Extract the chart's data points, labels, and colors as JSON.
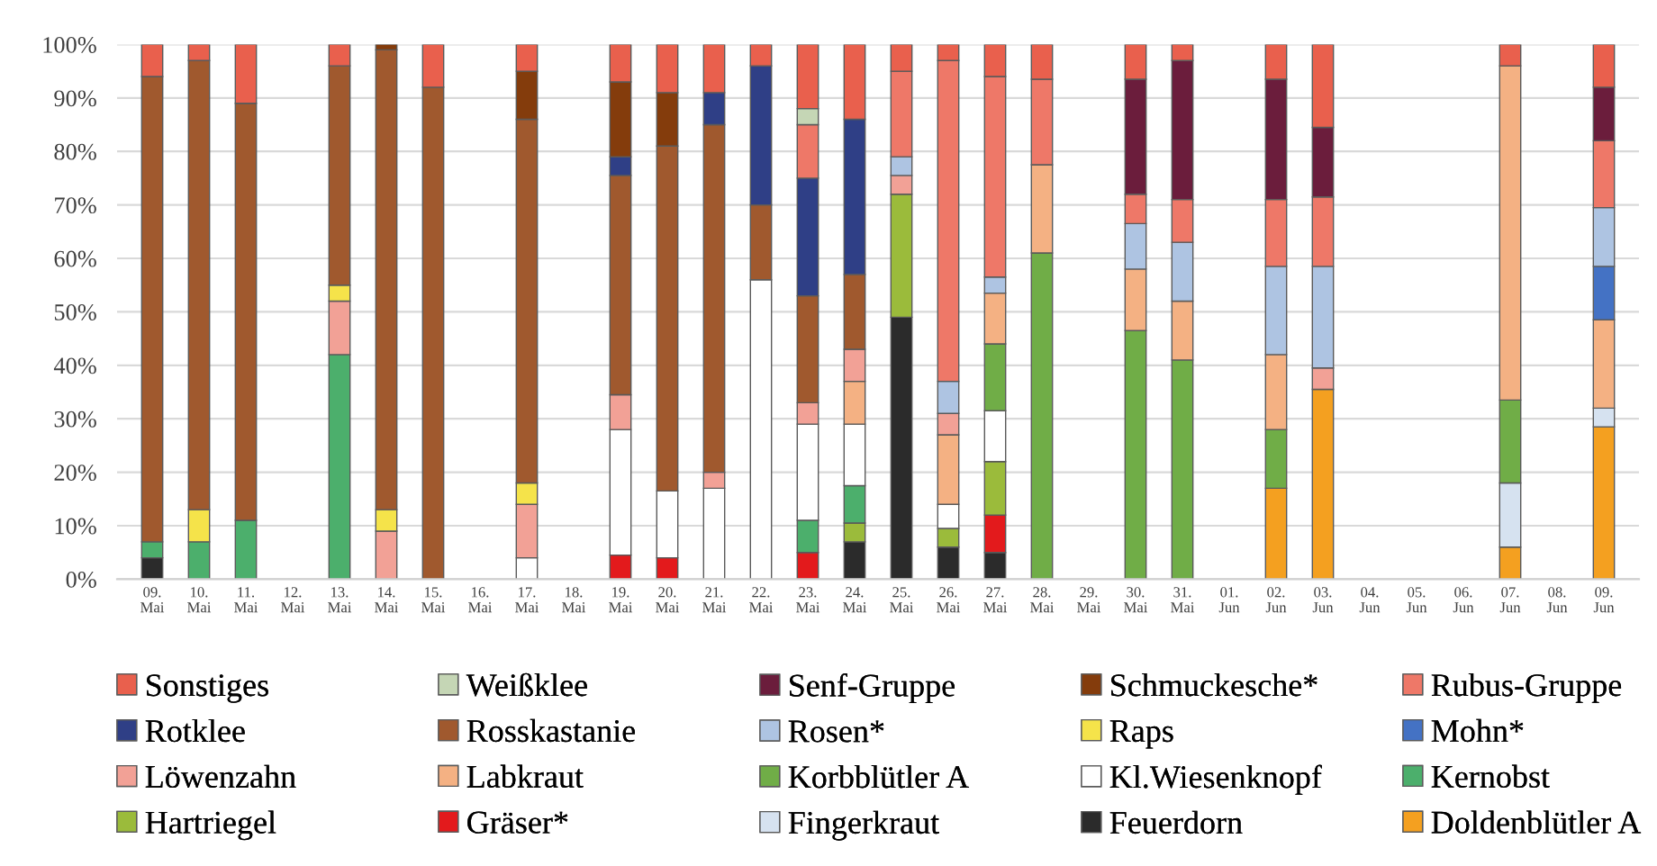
{
  "chart_data": {
    "type": "bar",
    "stacked": true,
    "legend": "bottom",
    "grid": "y",
    "categories": [
      "09. Mai",
      "10. Mai",
      "11. Mai",
      "12. Mai",
      "13. Mai",
      "14. Mai",
      "15. Mai",
      "16. Mai",
      "17. Mai",
      "18. Mai",
      "19. Mai",
      "20. Mai",
      "21. Mai",
      "22. Mai",
      "23. Mai",
      "24. Mai",
      "25. Mai",
      "26. Mai",
      "27. Mai",
      "28. Mai",
      "29. Mai",
      "30. Mai",
      "31. Mai",
      "01. Jun",
      "02. Jun",
      "03. Jun",
      "04. Jun",
      "05. Jun",
      "06. Jun",
      "07. Jun",
      "08. Jun",
      "09. Jun"
    ],
    "ylim": [
      0,
      100
    ],
    "yticks": [
      {
        "value": 0,
        "label": "0%"
      },
      {
        "value": 10,
        "label": "10%"
      },
      {
        "value": 20,
        "label": "20%"
      },
      {
        "value": 30,
        "label": "30%"
      },
      {
        "value": 40,
        "label": "40%"
      },
      {
        "value": 50,
        "label": "50%"
      },
      {
        "value": 60,
        "label": "60%"
      },
      {
        "value": 70,
        "label": "70%"
      },
      {
        "value": 80,
        "label": "80%"
      },
      {
        "value": 90,
        "label": "90%"
      },
      {
        "value": 100,
        "label": "100%"
      }
    ],
    "series": [
      {
        "name": "Doldenblütler A",
        "color": "#f4a020",
        "values": [
          null,
          null,
          null,
          null,
          null,
          null,
          null,
          null,
          null,
          null,
          null,
          null,
          null,
          null,
          null,
          null,
          null,
          null,
          null,
          null,
          null,
          null,
          null,
          null,
          17,
          35.5,
          null,
          null,
          null,
          6,
          null,
          28.5
        ]
      },
      {
        "name": "Feuerdorn",
        "color": "#2b2b2b",
        "values": [
          4,
          null,
          null,
          null,
          null,
          null,
          null,
          null,
          null,
          null,
          null,
          null,
          null,
          null,
          null,
          7,
          49,
          6,
          5,
          null,
          null,
          null,
          null,
          null,
          null,
          null,
          null,
          null,
          null,
          null,
          null,
          null
        ]
      },
      {
        "name": "Fingerkraut",
        "color": "#d6e2f0",
        "values": [
          null,
          null,
          null,
          null,
          null,
          null,
          null,
          null,
          null,
          null,
          null,
          null,
          null,
          null,
          null,
          null,
          null,
          null,
          null,
          null,
          null,
          null,
          null,
          null,
          null,
          null,
          null,
          null,
          null,
          12,
          null,
          3.5
        ]
      },
      {
        "name": "Gräser*",
        "color": "#e31a1c",
        "values": [
          null,
          null,
          null,
          null,
          null,
          null,
          null,
          null,
          null,
          null,
          4.5,
          4,
          null,
          null,
          5,
          null,
          null,
          null,
          7,
          null,
          null,
          null,
          null,
          null,
          null,
          null,
          null,
          null,
          null,
          null,
          null,
          null
        ]
      },
      {
        "name": "Hartriegel",
        "color": "#9bbb3b",
        "values": [
          null,
          null,
          null,
          null,
          null,
          null,
          null,
          null,
          null,
          null,
          null,
          null,
          null,
          null,
          null,
          3.5,
          23,
          3.5,
          10,
          null,
          null,
          null,
          null,
          null,
          null,
          null,
          null,
          null,
          null,
          null,
          null,
          null
        ]
      },
      {
        "name": "Kernobst",
        "color": "#4caf6c",
        "values": [
          3,
          7,
          11,
          null,
          42,
          null,
          null,
          null,
          null,
          null,
          null,
          null,
          null,
          null,
          6,
          7,
          null,
          null,
          null,
          null,
          null,
          null,
          null,
          null,
          null,
          null,
          null,
          null,
          null,
          null,
          null,
          null
        ]
      },
      {
        "name": "Kl.Wiesenknopf",
        "color": "#ffffff",
        "values": [
          null,
          null,
          null,
          null,
          null,
          null,
          null,
          null,
          4,
          null,
          23.5,
          12.5,
          17,
          56,
          18,
          11.5,
          null,
          4.5,
          9.5,
          null,
          null,
          null,
          null,
          null,
          null,
          null,
          null,
          null,
          null,
          null,
          null,
          null
        ]
      },
      {
        "name": "Korbblütler A",
        "color": "#70ad47",
        "values": [
          null,
          null,
          null,
          null,
          null,
          null,
          null,
          null,
          null,
          null,
          null,
          null,
          null,
          null,
          null,
          null,
          null,
          null,
          12.5,
          61,
          null,
          46.5,
          41,
          null,
          11,
          null,
          null,
          null,
          null,
          15.5,
          null,
          null
        ]
      },
      {
        "name": "Labkraut",
        "color": "#f4b183",
        "values": [
          null,
          null,
          null,
          null,
          null,
          null,
          null,
          null,
          null,
          null,
          null,
          null,
          null,
          null,
          null,
          8,
          null,
          13,
          9.5,
          16.5,
          null,
          11.5,
          11,
          null,
          14,
          null,
          null,
          null,
          null,
          62.5,
          null,
          16.5
        ]
      },
      {
        "name": "Löwenzahn",
        "color": "#f2a196",
        "values": [
          null,
          null,
          null,
          null,
          10,
          9,
          null,
          null,
          10,
          null,
          6.5,
          null,
          3,
          null,
          4,
          6,
          3.5,
          4,
          null,
          null,
          null,
          null,
          null,
          null,
          null,
          4,
          null,
          null,
          null,
          null,
          null,
          null
        ]
      },
      {
        "name": "Mohn*",
        "color": "#4472c4",
        "values": [
          null,
          null,
          null,
          null,
          null,
          null,
          null,
          null,
          null,
          null,
          null,
          null,
          null,
          null,
          null,
          null,
          null,
          null,
          null,
          null,
          null,
          null,
          null,
          null,
          null,
          null,
          null,
          null,
          null,
          null,
          null,
          10
        ]
      },
      {
        "name": "Raps",
        "color": "#f5e34a",
        "values": [
          null,
          6,
          null,
          null,
          3,
          4,
          null,
          null,
          4,
          null,
          null,
          null,
          null,
          null,
          null,
          null,
          null,
          null,
          null,
          null,
          null,
          null,
          null,
          null,
          null,
          null,
          null,
          null,
          null,
          null,
          null,
          null
        ]
      },
      {
        "name": "Rosen*",
        "color": "#aec4e2",
        "values": [
          null,
          null,
          null,
          null,
          null,
          null,
          null,
          null,
          null,
          null,
          null,
          null,
          null,
          null,
          null,
          null,
          3.5,
          6,
          3,
          null,
          null,
          8.5,
          11,
          null,
          16.5,
          19,
          null,
          null,
          null,
          null,
          null,
          11
        ]
      },
      {
        "name": "Rosskastanie",
        "color": "#a0592e",
        "values": [
          87,
          84,
          78,
          null,
          41,
          86,
          92,
          null,
          68,
          null,
          41,
          64.5,
          65,
          14,
          20,
          14,
          null,
          null,
          null,
          null,
          null,
          null,
          null,
          null,
          null,
          null,
          null,
          null,
          null,
          null,
          null,
          null
        ]
      },
      {
        "name": "Rotklee",
        "color": "#2f3f86",
        "values": [
          null,
          null,
          null,
          null,
          null,
          null,
          null,
          null,
          null,
          null,
          3.5,
          null,
          6,
          26,
          22,
          29,
          null,
          null,
          null,
          null,
          null,
          null,
          null,
          null,
          null,
          null,
          null,
          null,
          null,
          null,
          null,
          null
        ]
      },
      {
        "name": "Rubus-Gruppe",
        "color": "#ee7868",
        "values": [
          null,
          null,
          null,
          null,
          null,
          null,
          null,
          null,
          null,
          null,
          null,
          null,
          null,
          null,
          10,
          null,
          16,
          60,
          37.5,
          16,
          null,
          5.5,
          8,
          null,
          12.5,
          13,
          null,
          null,
          null,
          null,
          null,
          12.5
        ]
      },
      {
        "name": "Schmuckesche*",
        "color": "#843c0c",
        "values": [
          null,
          null,
          null,
          null,
          null,
          1,
          null,
          null,
          9,
          null,
          14,
          10,
          null,
          null,
          null,
          null,
          null,
          null,
          null,
          null,
          null,
          null,
          null,
          null,
          null,
          null,
          null,
          null,
          null,
          null,
          null,
          null
        ]
      },
      {
        "name": "Senf-Gruppe",
        "color": "#6b1d3c",
        "values": [
          null,
          null,
          null,
          null,
          null,
          null,
          null,
          null,
          null,
          null,
          null,
          null,
          null,
          null,
          null,
          null,
          null,
          null,
          null,
          null,
          null,
          21.5,
          26,
          null,
          22.5,
          13,
          null,
          null,
          null,
          null,
          null,
          10
        ]
      },
      {
        "name": "Weißklee",
        "color": "#c5d6b5",
        "values": [
          null,
          null,
          null,
          null,
          null,
          null,
          null,
          null,
          null,
          null,
          null,
          null,
          null,
          null,
          3,
          null,
          null,
          null,
          null,
          null,
          null,
          null,
          null,
          null,
          null,
          null,
          null,
          null,
          null,
          null,
          null,
          null
        ]
      },
      {
        "name": "Sonstiges",
        "color": "#e9604d",
        "values": [
          6,
          3,
          11,
          null,
          4,
          null,
          8,
          null,
          5,
          null,
          7,
          9,
          9,
          4,
          12,
          14,
          5,
          3,
          6,
          6.5,
          null,
          6.5,
          3,
          null,
          6.5,
          15.5,
          null,
          null,
          null,
          4,
          null,
          8
        ]
      }
    ]
  }
}
